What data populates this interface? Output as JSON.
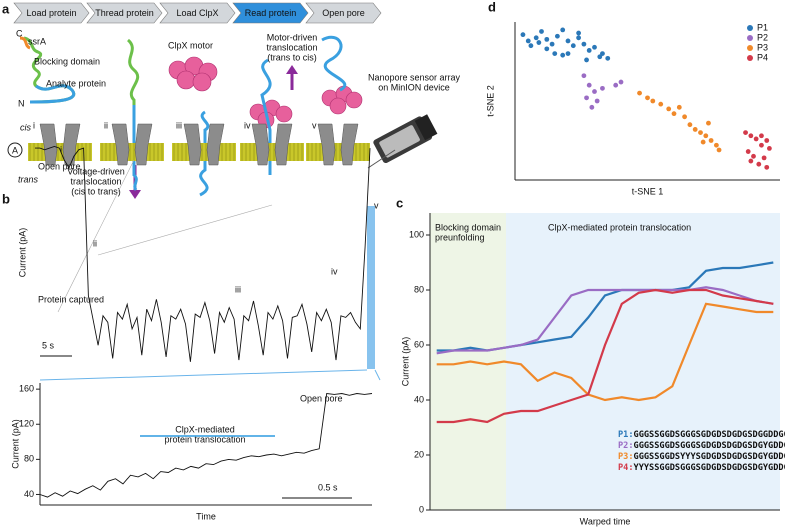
{
  "panel_labels": [
    "a",
    "b",
    "c",
    "d"
  ],
  "steps": [
    "Load protein",
    "Thread protein",
    "Load ClpX",
    "Read protein",
    "Open pore"
  ],
  "active_step": 3,
  "diagram": {
    "c_terminus": "C",
    "ssra": "ssrA",
    "blocking": "Blocking domain",
    "analyte": "Analyte protein",
    "n_terminus": "N",
    "clpx": "ClpX motor",
    "motor": [
      "Motor-driven",
      "translocation",
      "(trans to cis)"
    ],
    "sensor": [
      "Nanopore sensor array",
      "on MinION device"
    ],
    "stages": [
      "i",
      "ii",
      "iii",
      "iv",
      "v"
    ],
    "cis": "cis",
    "trans": "trans",
    "amp": "A",
    "voltage": [
      "Voltage-driven",
      "translocation",
      "(cis to trans)"
    ]
  },
  "chart_data": [
    {
      "type": "line",
      "ylabel": "Current (pA)",
      "color": "#111",
      "ylim": [
        15,
        158
      ],
      "values": [
        150,
        150,
        149,
        150,
        151,
        150,
        143,
        138,
        145,
        149,
        150,
        60,
        45,
        30,
        48,
        44,
        22,
        50,
        46,
        55,
        40,
        47,
        24,
        52,
        45,
        58,
        44,
        23,
        48,
        46,
        52,
        43,
        20,
        49,
        47,
        56,
        45,
        25,
        50,
        44,
        53,
        46,
        21,
        48,
        45,
        57,
        42,
        24,
        50,
        46,
        54,
        45,
        22,
        47,
        48,
        55,
        43,
        26,
        50,
        45,
        52,
        44,
        21,
        48,
        47,
        50,
        44,
        40,
        90,
        150
      ],
      "annotations": [
        "i",
        "ii",
        "iii",
        "iv",
        "v",
        "Open pore",
        "Protein captured",
        "5 s"
      ]
    },
    {
      "type": "line",
      "ylabel": "Current (pA)",
      "xlabel": "Time",
      "color": "#111",
      "ylim": [
        28,
        167
      ],
      "yticks": [
        40,
        80,
        120,
        160
      ],
      "values": [
        40,
        37,
        42,
        38,
        44,
        41,
        46,
        50,
        45,
        55,
        58,
        52,
        62,
        60,
        64,
        58,
        66,
        65,
        70,
        68,
        72,
        70,
        75,
        74,
        78,
        80,
        79,
        82,
        84,
        83,
        85,
        86,
        84,
        86,
        88,
        87,
        90,
        92,
        155,
        154,
        155,
        153,
        155,
        154,
        155
      ],
      "annotations": [
        "ClpX-mediated",
        "protein translocation",
        "Open pore",
        "0.5 s"
      ]
    },
    {
      "type": "line",
      "ylabel": "Current (pA)",
      "xlabel": "Warped time",
      "ylim": [
        0,
        108
      ],
      "yticks": [
        0,
        20,
        40,
        60,
        80,
        100
      ],
      "xlim": [
        -2,
        102
      ],
      "x": [
        0,
        5,
        10,
        15,
        20,
        25,
        30,
        35,
        40,
        45,
        50,
        55,
        60,
        65,
        70,
        75,
        80,
        85,
        90,
        95,
        100
      ],
      "series": [
        {
          "name": "P1",
          "color": "#2b78b8",
          "values": [
            58,
            58,
            59,
            58,
            59,
            60,
            61,
            62,
            63,
            70,
            78,
            80,
            80,
            80,
            80,
            81,
            87,
            88,
            88,
            89,
            90
          ]
        },
        {
          "name": "P2",
          "color": "#9a6cc4",
          "values": [
            57,
            58,
            58,
            58,
            59,
            60,
            62,
            70,
            78,
            80,
            80,
            80,
            80,
            80,
            80,
            80,
            81,
            80,
            78,
            76,
            75
          ]
        },
        {
          "name": "P3",
          "color": "#f0892a",
          "values": [
            53,
            53,
            54,
            53,
            54,
            53,
            47,
            50,
            48,
            42,
            40,
            41,
            40,
            41,
            45,
            60,
            75,
            74,
            73,
            72,
            72
          ]
        },
        {
          "name": "P4",
          "color": "#d33a4a",
          "values": [
            32,
            32,
            33,
            32,
            35,
            36,
            36,
            38,
            40,
            42,
            60,
            75,
            79,
            80,
            79,
            80,
            80,
            78,
            77,
            76,
            75
          ]
        }
      ],
      "annotations": [
        "Blocking domain",
        "preunfolding",
        "ClpX-mediated protein translocation"
      ],
      "sequences": [
        {
          "label": "P1:",
          "text": "GGGSSGGDSGGGSGDGDSDGDGSDGGDDGGEGGDGDDS"
        },
        {
          "label": "P2:",
          "text": "GGGSSGGDSGGGSGDGDSDGDGSDGYGDDGGEYYDYDDS"
        },
        {
          "label": "P3:",
          "text": "GGGSSGGDSYYYSGDGDSDGDGSDGYGDDGGEYYDYDDS"
        },
        {
          "label": "P4:",
          "text": "YYYSSGGDSGGGSGDGDSDGDGSDGYGDDGGEYYDYDDS"
        }
      ]
    },
    {
      "type": "scatter",
      "xlabel": "t-SNE 1",
      "ylabel": "t-SNE 2",
      "xlim": [
        0,
        100
      ],
      "ylim": [
        0,
        100
      ],
      "legend": "top-right",
      "series": [
        {
          "name": "P1",
          "color": "#2b78b8",
          "x": [
            3,
            5,
            8,
            6,
            10,
            12,
            14,
            16,
            12,
            18,
            20,
            22,
            24,
            20,
            26,
            28,
            30,
            32,
            24,
            18,
            9,
            15,
            27,
            33,
            35
          ],
          "y": [
            92,
            88,
            90,
            85,
            94,
            89,
            86,
            91,
            83,
            95,
            88,
            85,
            90,
            80,
            86,
            82,
            84,
            78,
            93,
            79,
            87,
            80,
            76,
            80,
            77
          ]
        },
        {
          "name": "P2",
          "color": "#9a6cc4",
          "x": [
            26,
            28,
            30,
            27,
            31,
            29,
            33,
            38,
            40
          ],
          "y": [
            66,
            60,
            56,
            52,
            50,
            46,
            58,
            60,
            62
          ]
        },
        {
          "name": "P3",
          "color": "#f0892a",
          "x": [
            47,
            50,
            52,
            55,
            58,
            60,
            62,
            64,
            66,
            68,
            70,
            72,
            74,
            76,
            77,
            71,
            73
          ],
          "y": [
            55,
            52,
            50,
            48,
            45,
            42,
            46,
            40,
            35,
            32,
            30,
            28,
            25,
            22,
            19,
            24,
            36
          ]
        },
        {
          "name": "P4",
          "color": "#d33a4a",
          "x": [
            87,
            89,
            91,
            93,
            95,
            96,
            88,
            90,
            94,
            92,
            95,
            89,
            93
          ],
          "y": [
            30,
            28,
            26,
            28,
            25,
            20,
            18,
            15,
            14,
            10,
            8,
            12,
            22
          ]
        }
      ]
    }
  ]
}
